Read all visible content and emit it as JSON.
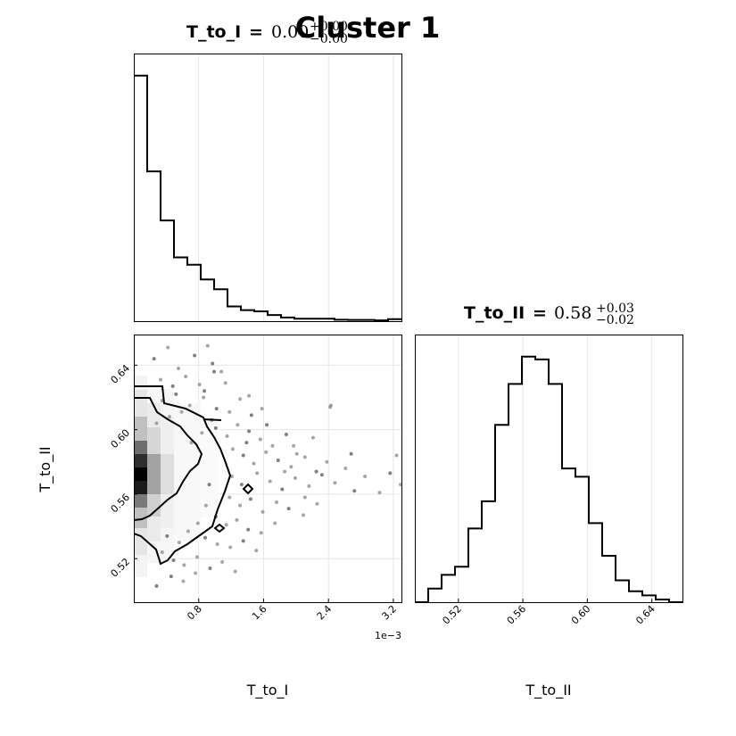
{
  "chart_data": {
    "type": "corner",
    "title": "Cluster 1",
    "parameters": [
      "T_to_I",
      "T_to_II"
    ],
    "panels": [
      {
        "type": "histogram",
        "param": "T_to_I",
        "title_name": "T_to_I",
        "title_value": "0.00",
        "title_plus": "+0.00",
        "title_minus": "−0.00",
        "xlim": [
          0,
          0.0033
        ],
        "xticks": [
          0.0008,
          0.0016,
          0.0024,
          0.0032
        ],
        "xtick_labels": [
          "0.8",
          "1.6",
          "2.4",
          "3.2"
        ],
        "bin_edges": [
          0,
          0.000165,
          0.00033,
          0.000495,
          0.00066,
          0.000825,
          0.00099,
          0.001155,
          0.00132,
          0.001485,
          0.00165,
          0.001815,
          0.00198,
          0.002145,
          0.00231,
          0.002475,
          0.00264,
          0.002805,
          0.00297,
          0.003135,
          0.0033
        ],
        "counts": [
          100,
          61,
          41,
          26,
          23,
          17,
          13,
          6,
          4.5,
          4,
          2.5,
          1.5,
          1,
          1,
          1,
          0.6,
          0.5,
          0.5,
          0.3,
          0.8
        ]
      },
      {
        "type": "histogram",
        "param": "T_to_II",
        "title_name": "T_to_II",
        "title_value": "0.58",
        "title_plus": "+0.03",
        "title_minus": "−0.02",
        "xlim": [
          0.493,
          0.659
        ],
        "xticks": [
          0.52,
          0.56,
          0.6,
          0.64
        ],
        "xtick_labels": [
          "0.52",
          "0.56",
          "0.60",
          "0.64"
        ],
        "bin_edges": [
          0.493,
          0.5013,
          0.5096,
          0.5179,
          0.5262,
          0.5345,
          0.5428,
          0.5511,
          0.5594,
          0.5677,
          0.576,
          0.5843,
          0.5926,
          0.6009,
          0.6092,
          0.6175,
          0.6258,
          0.6341,
          0.6424,
          0.6507,
          0.659
        ],
        "counts": [
          0,
          5,
          10,
          13,
          27,
          37,
          65,
          80,
          90,
          89,
          80,
          49,
          46,
          29,
          17,
          8,
          4,
          2.5,
          1,
          0
        ]
      },
      {
        "type": "2d",
        "x_param": "T_to_I",
        "y_param": "T_to_II",
        "xlim": [
          0,
          0.0033
        ],
        "ylim": [
          0.493,
          0.659
        ],
        "xticks": [
          0.0008,
          0.0016,
          0.0024,
          0.0032
        ],
        "xtick_labels": [
          "0.8",
          "1.6",
          "2.4",
          "3.2"
        ],
        "yticks": [
          0.52,
          0.56,
          0.6,
          0.64
        ],
        "ytick_labels": [
          "0.52",
          "0.56",
          "0.60",
          "0.64"
        ],
        "x_offset_label": "1e−3",
        "points": [
          [
            0.00025,
            0.644
          ],
          [
            0.00042,
            0.651
          ],
          [
            0.00055,
            0.638
          ],
          [
            0.00075,
            0.646
          ],
          [
            0.00091,
            0.652
          ],
          [
            0.00033,
            0.631
          ],
          [
            0.00048,
            0.627
          ],
          [
            0.00064,
            0.633
          ],
          [
            0.00081,
            0.628
          ],
          [
            0.00097,
            0.641
          ],
          [
            0.00108,
            0.636
          ],
          [
            0.00035,
            0.618
          ],
          [
            0.00052,
            0.622
          ],
          [
            0.00069,
            0.615
          ],
          [
            0.00086,
            0.62
          ],
          [
            0.00102,
            0.613
          ],
          [
            0.00118,
            0.611
          ],
          [
            0.00131,
            0.619
          ],
          [
            0.00145,
            0.609
          ],
          [
            0.00158,
            0.613
          ],
          [
            0.00028,
            0.604
          ],
          [
            0.00101,
            0.601
          ],
          [
            0.00115,
            0.596
          ],
          [
            0.00128,
            0.603
          ],
          [
            0.00142,
            0.599
          ],
          [
            0.00156,
            0.594
          ],
          [
            0.00171,
            0.59
          ],
          [
            0.00188,
            0.597
          ],
          [
            0.00201,
            0.585
          ],
          [
            0.00122,
            0.588
          ],
          [
            0.00135,
            0.584
          ],
          [
            0.00148,
            0.579
          ],
          [
            0.00163,
            0.586
          ],
          [
            0.00178,
            0.581
          ],
          [
            0.00194,
            0.577
          ],
          [
            0.00211,
            0.583
          ],
          [
            0.00225,
            0.574
          ],
          [
            0.00238,
            0.58
          ],
          [
            0.00121,
            0.571
          ],
          [
            0.00133,
            0.566
          ],
          [
            0.00152,
            0.573
          ],
          [
            0.00168,
            0.568
          ],
          [
            0.00183,
            0.563
          ],
          [
            0.00199,
            0.57
          ],
          [
            0.00216,
            0.565
          ],
          [
            0.00232,
            0.572
          ],
          [
            0.00248,
            0.567
          ],
          [
            0.00261,
            0.576
          ],
          [
            0.00272,
            0.562
          ],
          [
            0.00118,
            0.558
          ],
          [
            0.00131,
            0.553
          ],
          [
            0.00144,
            0.557
          ],
          [
            0.00159,
            0.549
          ],
          [
            0.00176,
            0.555
          ],
          [
            0.00191,
            0.551
          ],
          [
            0.00209,
            0.547
          ],
          [
            0.00226,
            0.554
          ],
          [
            0.00101,
            0.546
          ],
          [
            0.00114,
            0.541
          ],
          [
            0.00127,
            0.544
          ],
          [
            0.00141,
            0.538
          ],
          [
            0.00157,
            0.536
          ],
          [
            0.00174,
            0.542
          ],
          [
            0.00088,
            0.533
          ],
          [
            0.00103,
            0.529
          ],
          [
            0.00119,
            0.527
          ],
          [
            0.00135,
            0.531
          ],
          [
            0.00151,
            0.525
          ],
          [
            0.00035,
            0.524
          ],
          [
            0.00049,
            0.519
          ],
          [
            0.00062,
            0.516
          ],
          [
            0.00078,
            0.521
          ],
          [
            0.00094,
            0.514
          ],
          [
            0.00109,
            0.518
          ],
          [
            0.00125,
            0.512
          ],
          [
            0.00046,
            0.509
          ],
          [
            0.00061,
            0.506
          ],
          [
            0.00076,
            0.511
          ],
          [
            0.00028,
            0.503
          ],
          [
            0.00243,
            0.615
          ],
          [
            0.00242,
            0.614
          ],
          [
            0.00268,
            0.585
          ],
          [
            0.00285,
            0.571
          ],
          [
            0.00303,
            0.561
          ],
          [
            0.00316,
            0.573
          ],
          [
            0.00324,
            0.584
          ],
          [
            0.00329,
            0.566
          ],
          [
            0.00099,
            0.636
          ],
          [
            0.00071,
            0.592
          ],
          [
            0.00084,
            0.598
          ],
          [
            0.00096,
            0.606
          ],
          [
            0.00079,
            0.542
          ],
          [
            0.00089,
            0.553
          ],
          [
            0.00093,
            0.566
          ],
          [
            0.00056,
            0.53
          ],
          [
            0.00067,
            0.537
          ],
          [
            0.00041,
            0.534
          ],
          [
            0.00059,
            0.611
          ],
          [
            0.00044,
            0.608
          ],
          [
            0.00139,
            0.592
          ],
          [
            0.00211,
            0.558
          ],
          [
            0.00186,
            0.574
          ],
          [
            0.00164,
            0.603
          ],
          [
            0.00142,
            0.621
          ],
          [
            0.00113,
            0.629
          ],
          [
            0.00087,
            0.624
          ],
          [
            0.00197,
            0.59
          ],
          [
            0.00221,
            0.595
          ]
        ]
      }
    ],
    "axis_labels": {
      "x_left": "T_to_I",
      "x_right": "T_to_II",
      "y_left": "T_to_II"
    }
  }
}
